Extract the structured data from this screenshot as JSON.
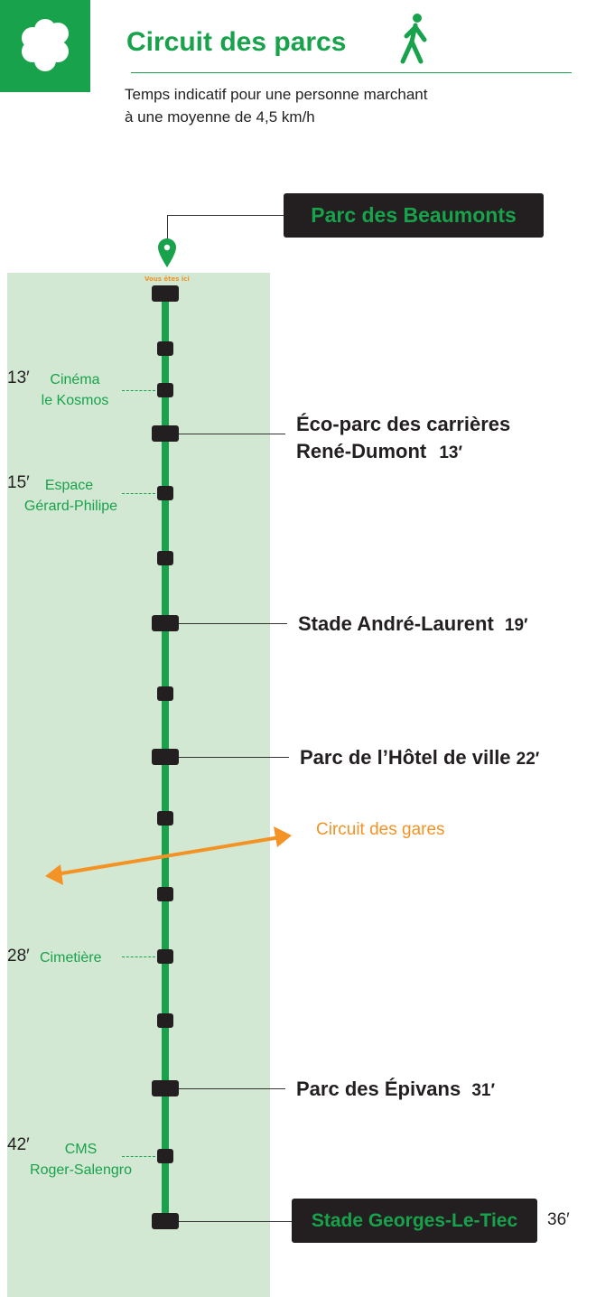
{
  "header": {
    "title": "Circuit des parcs",
    "subtitle_line1": "Temps indicatif pour une personne marchant",
    "subtitle_line2": "à une moyenne de 4,5 km/h",
    "logo_icon": "flower-cloud-icon",
    "walker_icon": "pedestrian-icon"
  },
  "colors": {
    "green": "#18a24b",
    "light_green": "#d3e8d3",
    "dark": "#231f20",
    "orange": "#f39325"
  },
  "origin": {
    "name": "Parc des Beaumonts",
    "you_are_here": "Vous êtes ici"
  },
  "stations": [
    {
      "name_line1": "Éco-parc des carrières",
      "name_line2": "René-Dumont",
      "time": "13′"
    },
    {
      "name": "Stade André-Laurent",
      "time": "19′"
    },
    {
      "name": "Parc de l’Hôtel de ville",
      "time": "22′"
    },
    {
      "name": "Parc des Épivans",
      "time": "31′"
    },
    {
      "name": "Stade Georges-Le-Tiec",
      "time": "36′"
    }
  ],
  "side_stops": [
    {
      "line1": "Cinéma",
      "line2": "le Kosmos",
      "time": "13′"
    },
    {
      "line1": "Espace",
      "line2": "Gérard-Philipe",
      "time": "15′"
    },
    {
      "line1": "Cimetière",
      "time": "28′"
    },
    {
      "line1": "CMS",
      "line2": "Roger-Salengro",
      "time": "42′"
    }
  ],
  "connection": {
    "label": "Circuit des gares"
  }
}
